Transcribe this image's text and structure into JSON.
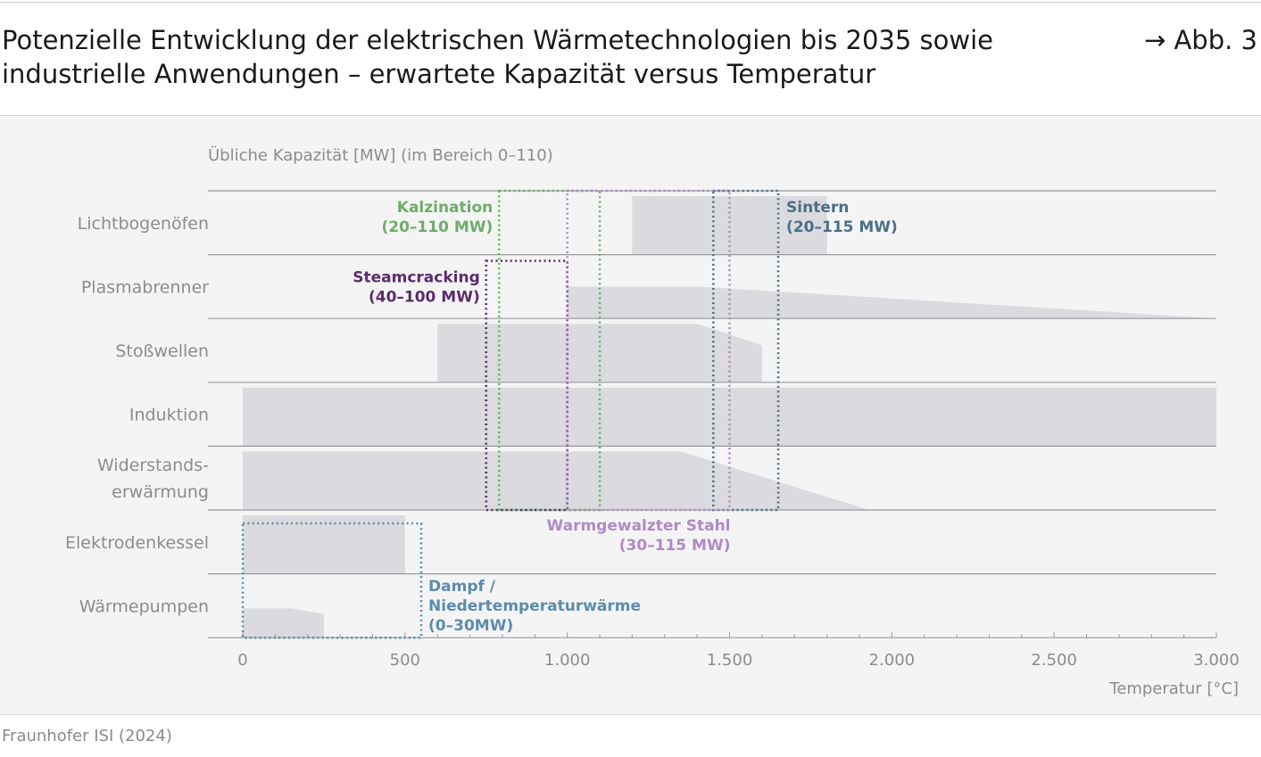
{
  "header": {
    "title": "Potenzielle Entwicklung der elektrischen Wärmetechnologien bis 2035 sowie industrielle Anwendungen – erwartete Kapazität versus Temperatur",
    "figure_ref": "→ Abb. 3"
  },
  "footer": {
    "source": "Fraunhofer ISI (2024)"
  },
  "colors": {
    "band": "#dadadf",
    "rule": "#9a9a9e",
    "axis_text": "#8c8c90",
    "kalzination": "#6fac6a",
    "sintern": "#4a6f87",
    "steamcracking": "#5b2d6b",
    "warmgewalzt": "#b08ac4",
    "dampf": "#5c8cab"
  },
  "chart_data": {
    "type": "range-profile",
    "subtitle": "Übliche Kapazität [MW] (im Bereich 0–110)",
    "xlabel": "Temperatur [°C]",
    "xlim": [
      -100,
      3000
    ],
    "x_ticks": [
      0,
      500,
      1000,
      1500,
      2000,
      2500,
      3000
    ],
    "x_tick_labels": [
      "0",
      "500",
      "1.000",
      "1.500",
      "2.000",
      "2.500",
      "3.000"
    ],
    "capacity_max": 110,
    "technologies": [
      {
        "name": "Lichtbogenöfen",
        "profile": [
          [
            1200,
            110
          ],
          [
            1800,
            110
          ]
        ]
      },
      {
        "name": "Plasmabrenner",
        "profile": [
          [
            1000,
            60
          ],
          [
            1400,
            60
          ],
          [
            3000,
            0
          ]
        ]
      },
      {
        "name": "Stoßwellen",
        "profile": [
          [
            600,
            110
          ],
          [
            1400,
            110
          ],
          [
            1600,
            70
          ]
        ]
      },
      {
        "name": "Induktion",
        "profile": [
          [
            0,
            110
          ],
          [
            3000,
            110
          ]
        ]
      },
      {
        "name": "Widerstands-\nerwärmung",
        "profile": [
          [
            0,
            110
          ],
          [
            1350,
            110
          ],
          [
            1930,
            0
          ]
        ]
      },
      {
        "name": "Elektrodenkessel",
        "profile": [
          [
            0,
            110
          ],
          [
            500,
            110
          ]
        ]
      },
      {
        "name": "Wärmepumpen",
        "profile": [
          [
            0,
            55
          ],
          [
            150,
            55
          ],
          [
            250,
            45
          ]
        ]
      }
    ],
    "applications": [
      {
        "name": "Kalzination",
        "range_label": "(20–110 MW)",
        "temp_range": [
          790,
          1100
        ],
        "rows": [
          0,
          4
        ],
        "color_key": "kalzination",
        "label_side": "left-top"
      },
      {
        "name": "Sintern",
        "range_label": "(20–115 MW)",
        "temp_range": [
          1450,
          1650
        ],
        "rows": [
          0,
          4
        ],
        "color_key": "sintern",
        "label_side": "right-top"
      },
      {
        "name": "Steamcracking",
        "range_label": "(40–100 MW)",
        "temp_range": [
          750,
          1000
        ],
        "rows": [
          1,
          4
        ],
        "color_key": "steamcracking",
        "label_side": "left-top"
      },
      {
        "name": "Warmgewalzter Stahl",
        "range_label": "(30–115 MW)",
        "temp_range": [
          1000,
          1500
        ],
        "rows": [
          0,
          4
        ],
        "color_key": "warmgewalzt",
        "label_side": "bottom-right"
      },
      {
        "name": "Dampf /\nNiedertemperaturwärme",
        "range_label": "(0–30MW)",
        "temp_range": [
          0,
          550
        ],
        "rows": [
          5,
          6
        ],
        "color_key": "dampf",
        "label_side": "right-bottom"
      }
    ]
  }
}
